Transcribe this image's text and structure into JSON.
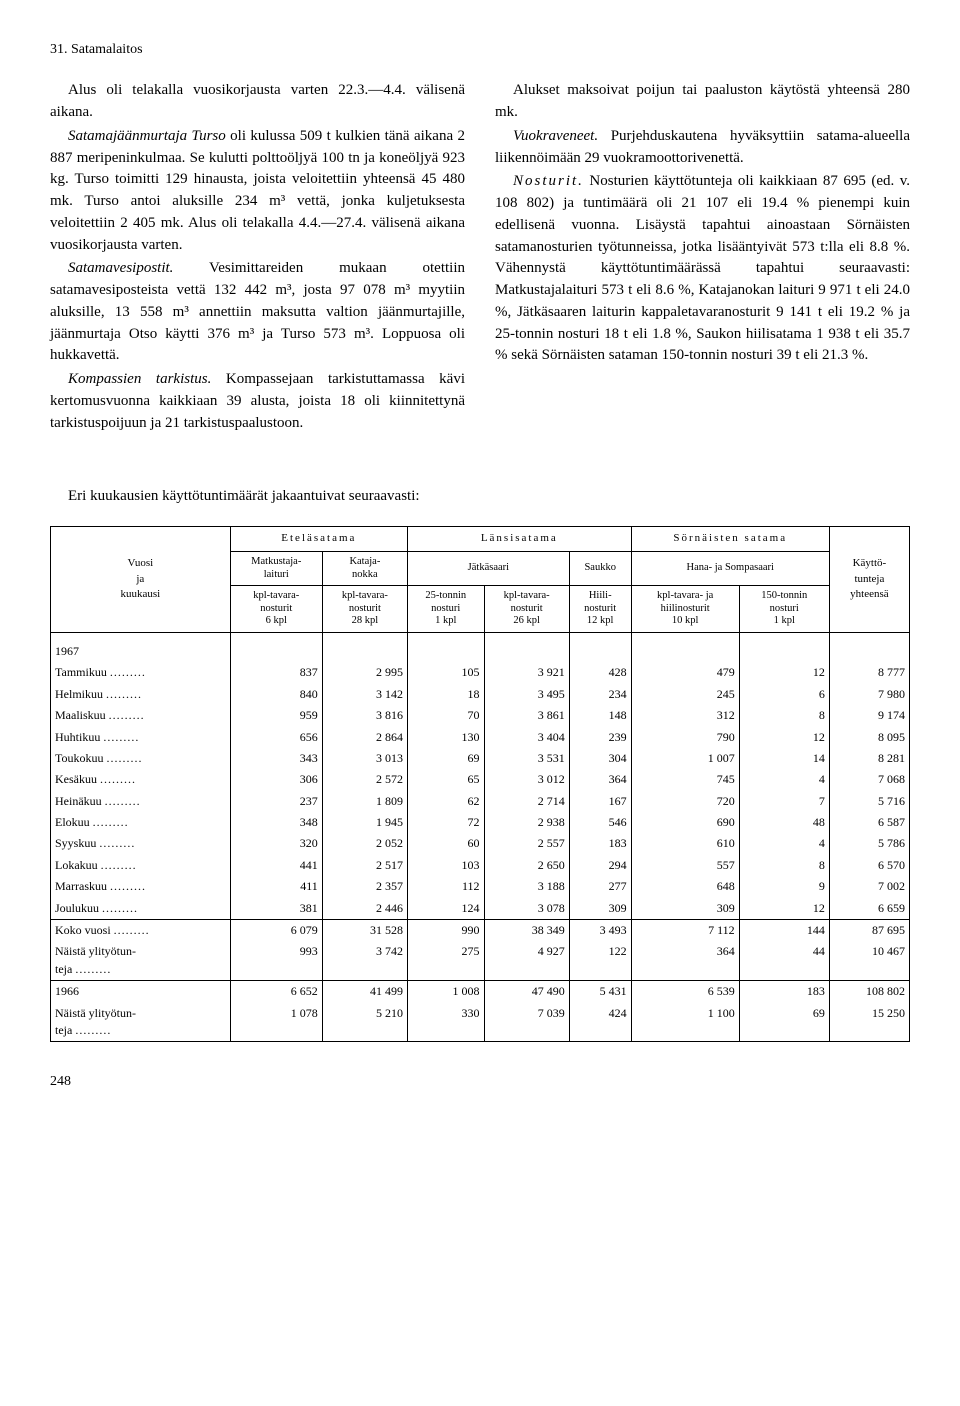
{
  "header": "31. Satamalaitos",
  "left_column": [
    "Alus oli telakalla vuosikorjausta varten 22.3.—4.4. välisenä aikana.",
    "<em class='ital'>Satamajäänmurtaja Turso</em> oli kulussa 509 t kulkien tänä aikana 2 887 meripeninkulmaa. Se kulutti polttoöljyä 100 tn ja koneöljyä 923 kg. Turso toimitti 129 hinausta, joista veloitettiin yhteensä 45 480 mk. Turso antoi aluksille 234 m³ vettä, jonka kuljetuksesta veloitettiin 2 405 mk. Alus oli telakalla 4.4.—27.4. välisenä aikana vuosikorjausta varten.",
    "<em class='ital'>Satamavesipostit.</em> Vesimittareiden mukaan otettiin satamavesiposteista vettä 132 442 m³, josta 97 078 m³ myytiin aluksille, 13 558 m³ annettiin maksutta valtion jäänmurtajille, jäänmurtaja Otso käytti 376 m³ ja Turso 573 m³. Loppuosa oli hukkavettä.",
    "<em class='ital'>Kompassien tarkistus.</em> Kompassejaan tarkistuttamassa kävi kertomusvuonna kaikkiaan 39 alusta, joista 18 oli kiinnitettynä tarkistuspoijuun ja 21 tarkistuspaalustoon."
  ],
  "right_column": [
    "Alukset maksoivat poijun tai paaluston käytöstä yhteensä 280 mk.",
    "<em class='ital'>Vuokraveneet.</em> Purjehduskautena hyväksyttiin satama-alueella liikennöimään 29 vuokramoottorivenettä.",
    "<em class='ital'><span class='spaced'>Nosturit.</span></em> Nosturien käyttötunteja oli kaikkiaan 87 695 (ed. v. 108 802) ja tuntimäärä oli 21 107 eli 19.4 % pienempi kuin edellisenä vuonna. Lisäystä tapahtui ainoastaan Sörnäisten satamanosturien työtunneissa, jotka lisääntyivät 573 t:lla eli 8.8 %. Vähennystä käyttötuntimäärässä tapahtui seuraavasti: Matkustajalaituri 573 t eli 8.6 %, Katajanokan laituri 9 971 t eli 24.0 %, Jätkäsaaren laiturin kappaletavaranosturit 9 141 t eli 19.2 % ja 25-tonnin nosturi 18 t eli 1.8 %, Saukon hiilisatama 1 938 t eli 35.7 % sekä Sörnäisten sataman 150-tonnin nosturi 39 t eli 21.3 %."
  ],
  "table_intro": "Eri kuukausien käyttötuntimäärät jakaantuivat seuraavasti:",
  "table": {
    "row_header_label": "Vuosi\nja\nkuukausi",
    "main_groups": [
      "Eteläsatama",
      "Länsisatama",
      "Sörnäisten satama"
    ],
    "sub_groups": [
      "Matkustaja-\nlaituri",
      "Kataja-\nnokka",
      "Jätkäsaari",
      "Saukko",
      "Hana- ja Sompasaari",
      "Käyttö-\ntunteja\nyhteensä"
    ],
    "unit_headers": [
      "kpl-tavara-\nnosturit\n6 kpl",
      "kpl-tavara-\nnosturit\n28 kpl",
      "25-tonnin\nnosturi\n1 kpl",
      "kpl-tavara-\nnosturit\n26 kpl",
      "Hiili-\nnosturit\n12 kpl",
      "kpl-tavara- ja\nhiilinosturit\n10 kpl",
      "150-tonnin\nnosturi\n1 kpl"
    ],
    "year_1967": "1967",
    "months": [
      {
        "label": "Tammikuu",
        "values": [
          837,
          2995,
          105,
          3921,
          428,
          479,
          12,
          8777
        ]
      },
      {
        "label": "Helmikuu",
        "values": [
          840,
          3142,
          18,
          3495,
          234,
          245,
          6,
          7980
        ]
      },
      {
        "label": "Maaliskuu",
        "values": [
          959,
          3816,
          70,
          3861,
          148,
          312,
          8,
          9174
        ]
      },
      {
        "label": "Huhtikuu",
        "values": [
          656,
          2864,
          130,
          3404,
          239,
          790,
          12,
          8095
        ]
      },
      {
        "label": "Toukokuu",
        "values": [
          343,
          3013,
          69,
          3531,
          304,
          1007,
          14,
          8281
        ]
      },
      {
        "label": "Kesäkuu",
        "values": [
          306,
          2572,
          65,
          3012,
          364,
          745,
          4,
          7068
        ]
      },
      {
        "label": "Heinäkuu",
        "values": [
          237,
          1809,
          62,
          2714,
          167,
          720,
          7,
          5716
        ]
      },
      {
        "label": "Elokuu",
        "values": [
          348,
          1945,
          72,
          2938,
          546,
          690,
          48,
          6587
        ]
      },
      {
        "label": "Syyskuu",
        "values": [
          320,
          2052,
          60,
          2557,
          183,
          610,
          4,
          5786
        ]
      },
      {
        "label": "Lokakuu",
        "values": [
          441,
          2517,
          103,
          2650,
          294,
          557,
          8,
          6570
        ]
      },
      {
        "label": "Marraskuu",
        "values": [
          411,
          2357,
          112,
          3188,
          277,
          648,
          9,
          7002
        ]
      },
      {
        "label": "Joulukuu",
        "values": [
          381,
          2446,
          124,
          3078,
          309,
          309,
          12,
          6659
        ]
      }
    ],
    "totals": [
      {
        "label": "Koko vuosi",
        "values": [
          6079,
          31528,
          990,
          38349,
          3493,
          7112,
          144,
          87695
        ]
      },
      {
        "label": "Näistä ylityötun-\nteja",
        "values": [
          993,
          3742,
          275,
          4927,
          122,
          364,
          44,
          10467
        ]
      }
    ],
    "year_1966": [
      {
        "label": "1966",
        "values": [
          6652,
          41499,
          1008,
          47490,
          5431,
          6539,
          183,
          108802
        ]
      },
      {
        "label": "Näistä ylityötun-\nteja",
        "values": [
          1078,
          5210,
          330,
          7039,
          424,
          1100,
          69,
          15250
        ]
      }
    ]
  },
  "page_number": "248"
}
